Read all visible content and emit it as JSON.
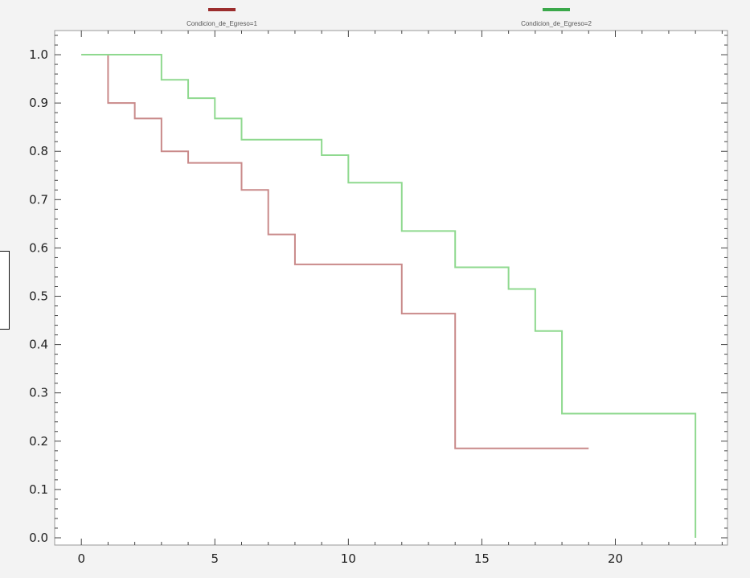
{
  "chart_data": {
    "type": "line",
    "step": true,
    "title": "",
    "xlabel": "",
    "ylabel": "",
    "xlim": [
      -1,
      24.2
    ],
    "ylim": [
      -0.015,
      1.05
    ],
    "x_ticks": [
      0,
      5,
      10,
      15,
      20
    ],
    "y_ticks": [
      0.0,
      0.1,
      0.2,
      0.3,
      0.4,
      0.5,
      0.6,
      0.7,
      0.8,
      0.9,
      1.0
    ],
    "x_tick_labels": [
      "0",
      "5",
      "10",
      "15",
      "20"
    ],
    "y_tick_labels": [
      "0.0",
      "0.1",
      "0.2",
      "0.3",
      "0.4",
      "0.5",
      "0.6",
      "0.7",
      "0.8",
      "0.9",
      "1.0"
    ],
    "legend_position": "top",
    "grid": false,
    "series": [
      {
        "name": "Condicion_de_Egreso=1",
        "color": "#c98a8a",
        "legend_color": "#9b2c2c",
        "x": [
          0,
          1,
          2,
          3,
          4,
          6,
          7,
          8,
          12,
          14,
          19
        ],
        "y": [
          1.0,
          0.9,
          0.868,
          0.8,
          0.776,
          0.72,
          0.628,
          0.566,
          0.464,
          0.185,
          0.185
        ]
      },
      {
        "name": "Condicion_de_Egreso=2",
        "color": "#8fd98f",
        "legend_color": "#3aa84a",
        "x": [
          0,
          3,
          4,
          5,
          6,
          9,
          10,
          12,
          14,
          16,
          17,
          18,
          23,
          23
        ],
        "y": [
          1.0,
          0.948,
          0.91,
          0.868,
          0.824,
          0.792,
          0.735,
          0.635,
          0.56,
          0.515,
          0.428,
          0.257,
          0.257,
          0.0
        ]
      }
    ]
  }
}
